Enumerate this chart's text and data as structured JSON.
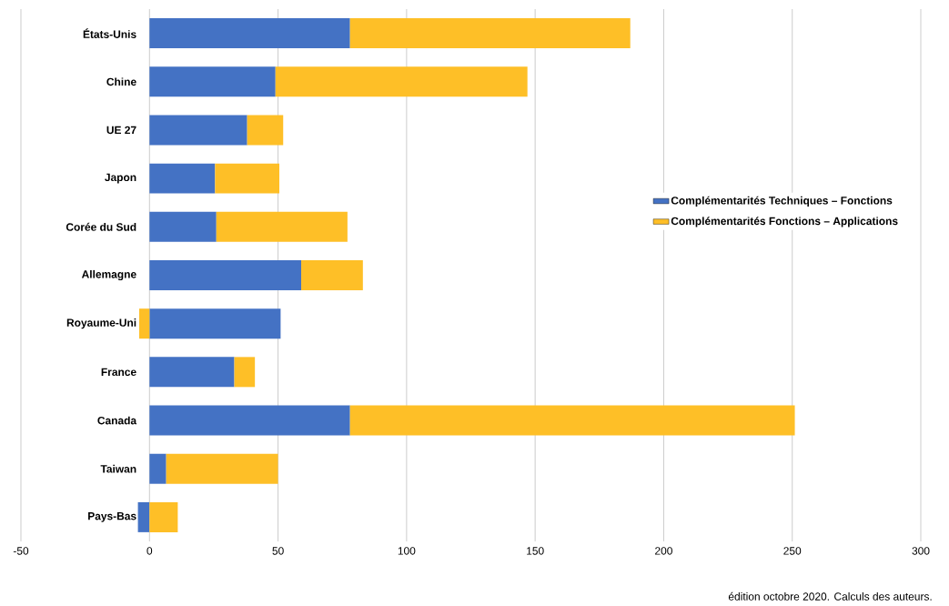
{
  "chart_data": {
    "type": "bar",
    "orientation": "horizontal",
    "stacked": true,
    "categories": [
      "États-Unis",
      "Chine",
      "UE 27",
      "Japon",
      "Corée du Sud",
      "Allemagne",
      "Royaume-Uni",
      "France",
      "Canada",
      "Taiwan",
      "Pays-Bas"
    ],
    "series": [
      {
        "name": "Complémentarités Techniques – Fonctions",
        "color": "#4472c4",
        "values": [
          78,
          49,
          38,
          25.5,
          26,
          59,
          51,
          33,
          78,
          6.5,
          -4.5
        ]
      },
      {
        "name": "Complémentarités Fonctions – Applications",
        "color": "#febf27",
        "values": [
          109,
          98,
          14,
          25,
          51,
          24,
          -4,
          8,
          173,
          43.5,
          11
        ]
      }
    ],
    "xlim": [
      -50,
      300
    ],
    "xticks": [
      -50,
      0,
      50,
      100,
      150,
      200,
      250,
      300
    ],
    "grid": "x",
    "legend": "right",
    "annotations": [
      "édition octobre 2020. Calculs des auteurs."
    ]
  }
}
